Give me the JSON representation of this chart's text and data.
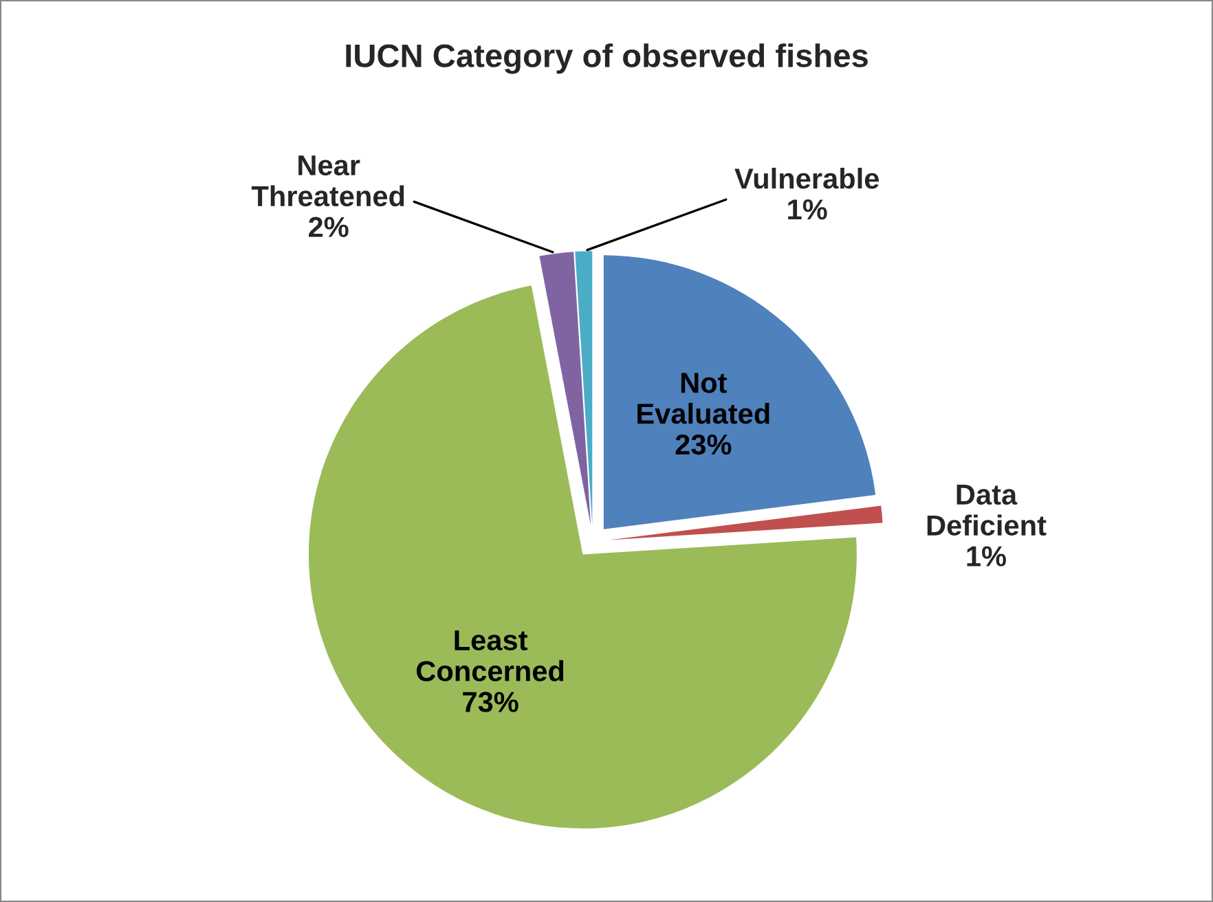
{
  "chart_data": {
    "type": "pie",
    "title": "IUCN Category of observed fishes",
    "categories": [
      "Not Evaluated",
      "Data Deficient",
      "Least Concerned",
      "Near Threatened",
      "Vulnerable"
    ],
    "values": [
      23,
      1,
      73,
      2,
      1
    ],
    "value_labels": [
      "23%",
      "1%",
      "73%",
      "2%",
      "1%"
    ],
    "colors": [
      "#4f81bd",
      "#c0504d",
      "#9bbb59",
      "#8064a2",
      "#4bacc6"
    ],
    "legend": false
  }
}
